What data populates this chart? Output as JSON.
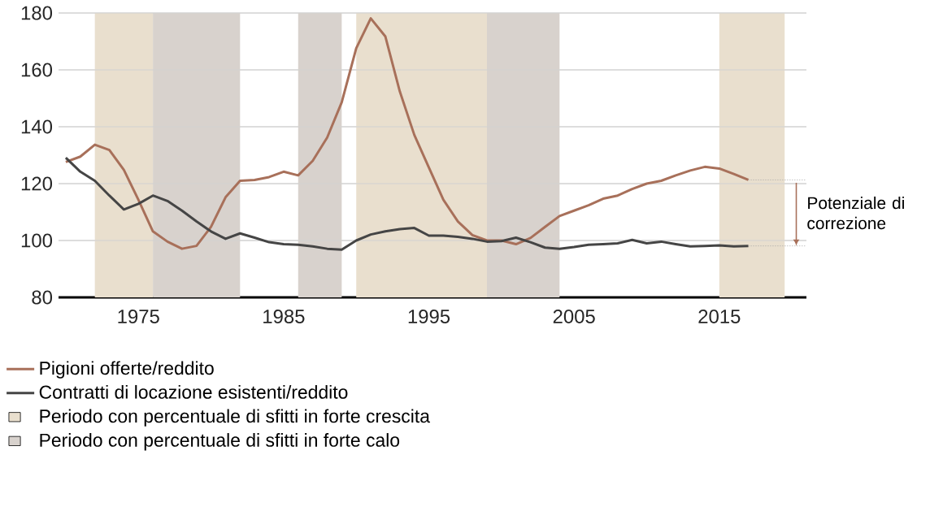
{
  "chart_data": {
    "type": "line",
    "x": [
      1970,
      1971,
      1972,
      1973,
      1974,
      1975,
      1976,
      1977,
      1978,
      1979,
      1980,
      1981,
      1982,
      1983,
      1984,
      1985,
      1986,
      1987,
      1988,
      1989,
      1990,
      1991,
      1992,
      1993,
      1994,
      1995,
      1996,
      1997,
      1998,
      1999,
      2000,
      2001,
      2002,
      2003,
      2004,
      2005,
      2006,
      2007,
      2008,
      2009,
      2010,
      2011,
      2012,
      2013,
      2014,
      2015,
      2016,
      2017
    ],
    "series": [
      {
        "name": "Pigioni offerte/reddito",
        "color": "#a8705a",
        "values": [
          127.6,
          129.5,
          133.7,
          131.8,
          124.8,
          114.3,
          103.2,
          99.6,
          97.1,
          98.1,
          104.8,
          115.2,
          121,
          121.3,
          122.3,
          124.2,
          122.9,
          128,
          136.2,
          148.6,
          167.6,
          178.1,
          171.8,
          152.4,
          137.1,
          125.7,
          114.3,
          106.7,
          101.9,
          100,
          100,
          98.7,
          100.9,
          104.8,
          108.6,
          110.5,
          112.4,
          114.7,
          115.8,
          118.1,
          120,
          121,
          122.9,
          124.6,
          125.9,
          125.3,
          123.4,
          121.3
        ]
      },
      {
        "name": "Contratti di locazione esistenti/reddito",
        "color": "#454545",
        "values": [
          129.1,
          124.2,
          121,
          115.8,
          110.9,
          112.9,
          115.8,
          113.9,
          110.5,
          106.7,
          103.2,
          100.6,
          102.5,
          101,
          99.4,
          98.7,
          98.5,
          97.9,
          97.1,
          96.8,
          100,
          102.1,
          103.2,
          104,
          104.4,
          101.7,
          101.7,
          101.3,
          100.6,
          99.6,
          99.8,
          101,
          99.4,
          97.5,
          97.1,
          97.7,
          98.5,
          98.7,
          99,
          100.2,
          99,
          99.6,
          98.7,
          97.9,
          98.1,
          98.3,
          97.9,
          98.1
        ]
      }
    ],
    "bands": [
      {
        "axis": "x",
        "from": 1972,
        "to": 1976,
        "color": "#e9dfce",
        "label": "Periodo con percentuale di sfitti in forte crescita"
      },
      {
        "axis": "x",
        "from": 1976,
        "to": 1982,
        "color": "#d8d2cd",
        "label": "Periodo con percentuale di sfitti in forte calo"
      },
      {
        "axis": "x",
        "from": 1986,
        "to": 1989,
        "color": "#d8d2cd"
      },
      {
        "axis": "x",
        "from": 1990,
        "to": 1999,
        "color": "#e9dfce"
      },
      {
        "axis": "x",
        "from": 1999,
        "to": 2004,
        "color": "#d8d2cd"
      },
      {
        "axis": "x",
        "from": 2015,
        "to": 2019.5,
        "color": "#e9dfce"
      }
    ],
    "annotations": [
      {
        "text": "Potenziale di correzione",
        "x": 2017,
        "y": 121.3
      }
    ],
    "xlim": [
      1969.5,
      2021
    ],
    "ylim": [
      80,
      180
    ],
    "xticks": [
      1975,
      1985,
      1995,
      2005,
      2015
    ],
    "yticks": [
      80,
      100,
      120,
      140,
      160,
      180
    ],
    "grid": "y",
    "legend": "bottom",
    "marker": "none",
    "line_style": "solid"
  }
}
